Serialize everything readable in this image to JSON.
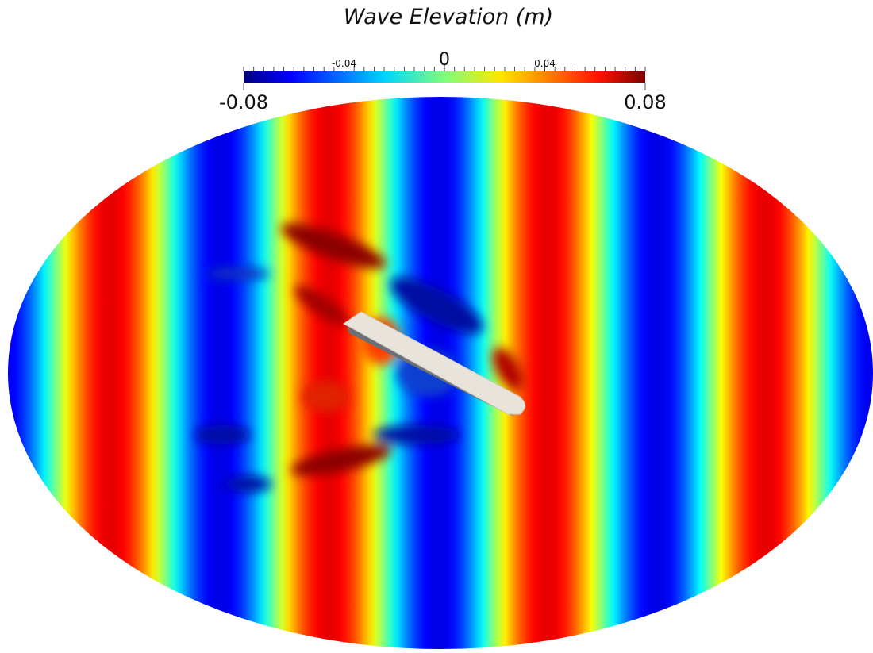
{
  "title": "Wave Elevation (m)",
  "colorbar": {
    "range": [
      -0.08,
      0.08
    ],
    "ticks": [
      -0.04,
      0,
      0.04
    ]
  }
}
